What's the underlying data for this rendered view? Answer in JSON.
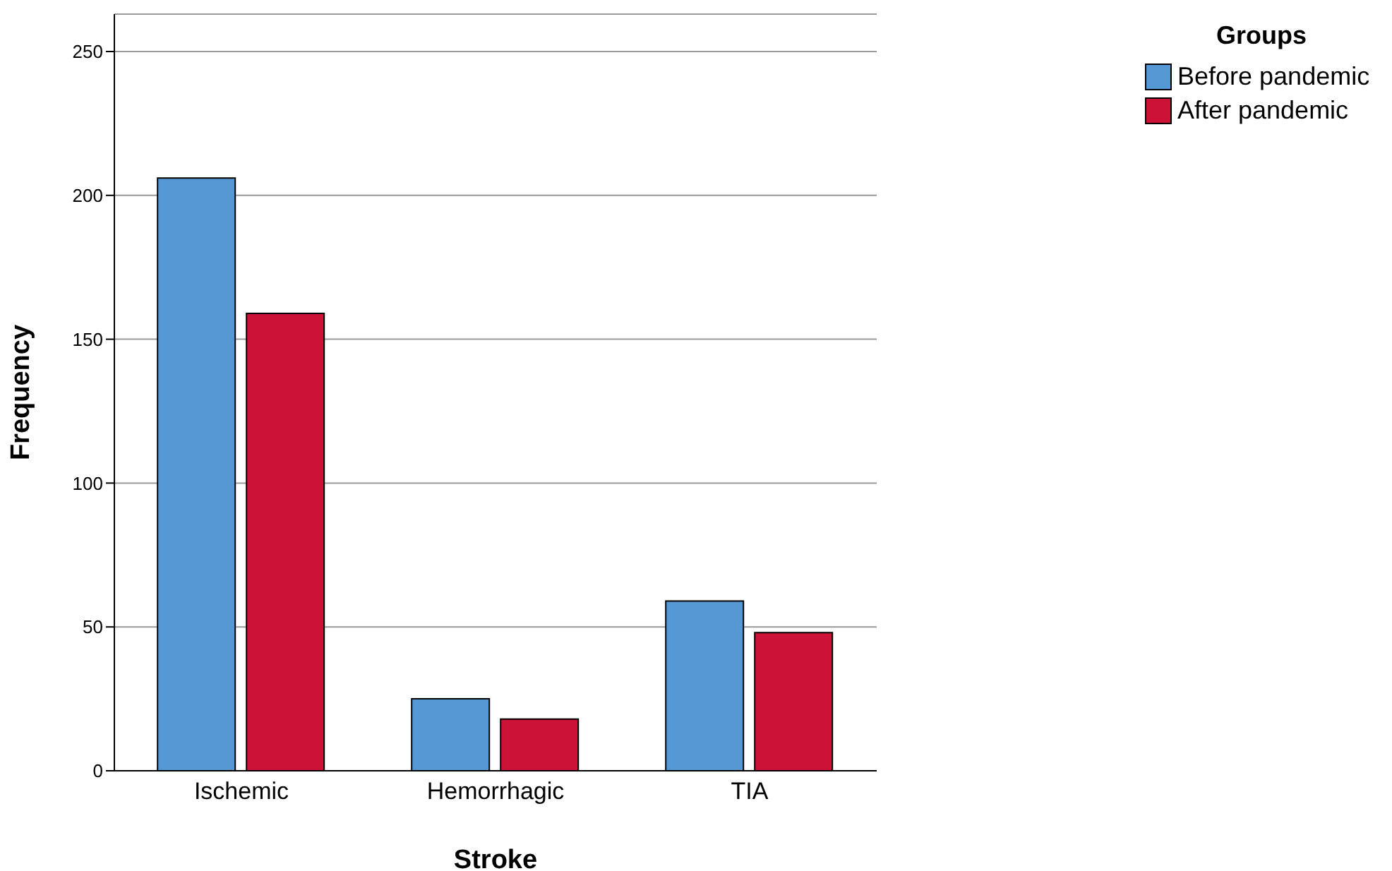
{
  "chart_data": {
    "type": "bar",
    "xlabel": "Stroke",
    "ylabel": "Frequency",
    "legend_title": "Groups",
    "categories": [
      "Ischemic",
      "Hemorrhagic",
      "TIA"
    ],
    "series": [
      {
        "name": "Before pandemic",
        "color": "#5698d3",
        "values": [
          206,
          25,
          59
        ]
      },
      {
        "name": "After pandemic",
        "color": "#cc1236",
        "values": [
          159,
          18,
          48
        ]
      }
    ],
    "ylim": [
      0,
      263
    ],
    "yticks": [
      0,
      50,
      100,
      150,
      200,
      250
    ],
    "grid": "y",
    "legend": "top right"
  }
}
